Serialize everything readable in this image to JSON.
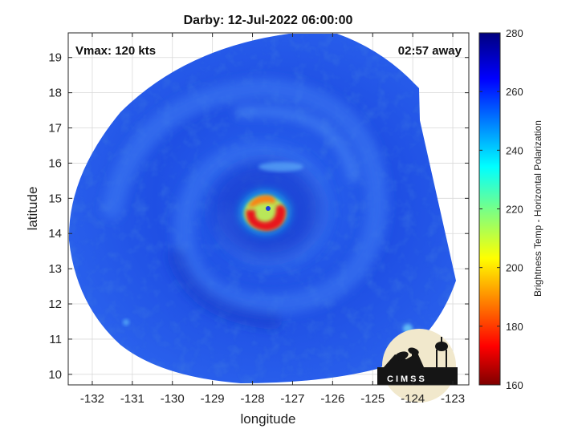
{
  "chart_data": {
    "type": "heatmap",
    "title": "Darby: 12-Jul-2022 06:00:00",
    "annotations": {
      "left": "Vmax: 120 kts",
      "right": "02:57 away"
    },
    "xlabel": "longitude",
    "ylabel": "latitude",
    "xlim": [
      -132.6,
      -122.6
    ],
    "ylim": [
      9.7,
      19.7
    ],
    "xticks": [
      -132,
      -131,
      -130,
      -129,
      -128,
      -127,
      -126,
      -125,
      -124,
      -123
    ],
    "yticks": [
      10,
      11,
      12,
      13,
      14,
      15,
      16,
      17,
      18,
      19
    ],
    "grid": true,
    "colorbar": {
      "label": "Brightness Temp - Horizontal Polarization",
      "range": [
        160,
        280
      ],
      "ticks": [
        160,
        180,
        200,
        220,
        240,
        260,
        280
      ],
      "colormap": "jet"
    },
    "storm_center": {
      "lon": -127.6,
      "lat": 14.6
    },
    "background_temp": 262,
    "eyewall_min_temp": 175,
    "logo": "CIMSS"
  },
  "colors": {
    "swath_background": "#1f4fe6",
    "eyewall": "#e8151b",
    "page": "#ffffff"
  }
}
